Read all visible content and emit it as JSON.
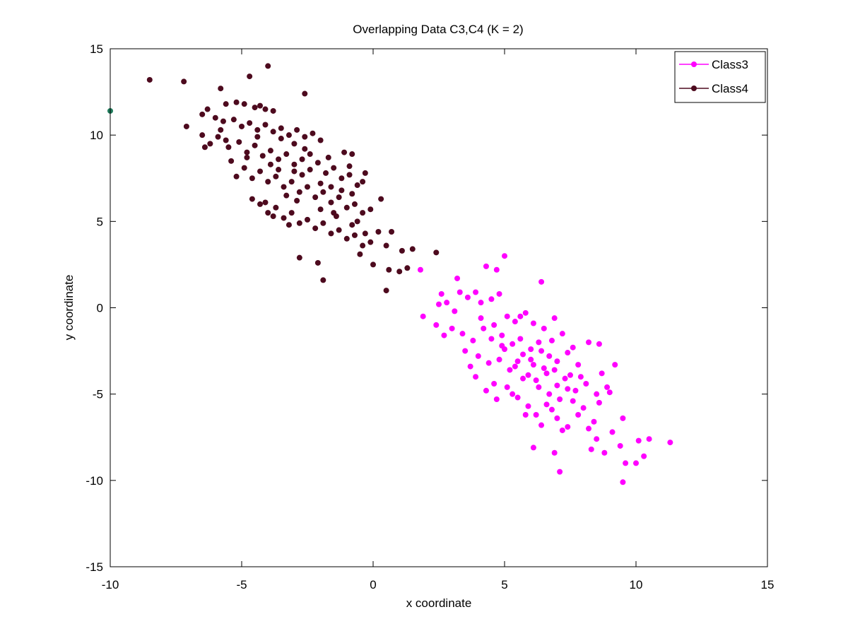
{
  "chart_data": {
    "type": "scatter",
    "title": "Overlapping Data C3,C4 (K = 2)",
    "xlabel": "x coordinate",
    "ylabel": "y coordinate",
    "xlim": [
      -10,
      15
    ],
    "ylim": [
      -15,
      15
    ],
    "xticks": [
      "-10",
      "-5",
      "0",
      "5",
      "10",
      "15"
    ],
    "yticks": [
      "-15",
      "-10",
      "-5",
      "0",
      "5",
      "10",
      "15"
    ],
    "legend_position": "top-right",
    "grid": false,
    "series": [
      {
        "name": "Class3",
        "color": "#ff00ff",
        "points": [
          [
            5.0,
            3.0
          ],
          [
            4.3,
            2.4
          ],
          [
            4.7,
            2.2
          ],
          [
            6.4,
            1.5
          ],
          [
            3.2,
            1.7
          ],
          [
            1.8,
            2.2
          ],
          [
            2.6,
            0.8
          ],
          [
            3.9,
            0.9
          ],
          [
            4.8,
            0.8
          ],
          [
            1.9,
            -0.5
          ],
          [
            2.5,
            0.2
          ],
          [
            2.8,
            0.3
          ],
          [
            3.1,
            -0.2
          ],
          [
            3.6,
            0.6
          ],
          [
            3.3,
            0.9
          ],
          [
            4.1,
            0.3
          ],
          [
            4.5,
            0.5
          ],
          [
            5.1,
            -0.5
          ],
          [
            5.4,
            -0.8
          ],
          [
            5.8,
            -0.3
          ],
          [
            6.1,
            -0.9
          ],
          [
            6.5,
            -1.2
          ],
          [
            6.9,
            -0.6
          ],
          [
            7.2,
            -1.5
          ],
          [
            4.2,
            -1.2
          ],
          [
            4.6,
            -1.0
          ],
          [
            4.9,
            -1.6
          ],
          [
            5.3,
            -2.1
          ],
          [
            5.6,
            -1.8
          ],
          [
            6.0,
            -2.4
          ],
          [
            6.3,
            -2.0
          ],
          [
            6.7,
            -2.8
          ],
          [
            7.0,
            -3.1
          ],
          [
            7.4,
            -2.6
          ],
          [
            7.8,
            -3.3
          ],
          [
            8.2,
            -2.0
          ],
          [
            8.6,
            -2.1
          ],
          [
            3.5,
            -2.5
          ],
          [
            3.8,
            -1.9
          ],
          [
            4.0,
            -2.8
          ],
          [
            4.4,
            -3.2
          ],
          [
            4.8,
            -3.0
          ],
          [
            5.2,
            -3.6
          ],
          [
            5.5,
            -3.1
          ],
          [
            5.9,
            -3.9
          ],
          [
            6.2,
            -4.2
          ],
          [
            6.6,
            -3.8
          ],
          [
            7.0,
            -4.5
          ],
          [
            7.3,
            -4.1
          ],
          [
            7.7,
            -4.8
          ],
          [
            8.1,
            -4.4
          ],
          [
            8.5,
            -5.0
          ],
          [
            8.9,
            -4.6
          ],
          [
            9.2,
            -3.3
          ],
          [
            2.4,
            -1.0
          ],
          [
            2.7,
            -1.6
          ],
          [
            3.0,
            -1.2
          ],
          [
            3.4,
            -1.5
          ],
          [
            3.7,
            -3.4
          ],
          [
            4.3,
            -4.8
          ],
          [
            4.7,
            -5.3
          ],
          [
            5.1,
            -4.6
          ],
          [
            5.5,
            -5.2
          ],
          [
            5.9,
            -5.7
          ],
          [
            6.2,
            -6.2
          ],
          [
            6.6,
            -5.6
          ],
          [
            7.0,
            -6.4
          ],
          [
            7.4,
            -6.9
          ],
          [
            7.8,
            -6.2
          ],
          [
            8.2,
            -7.0
          ],
          [
            8.5,
            -7.6
          ],
          [
            8.8,
            -8.4
          ],
          [
            9.1,
            -7.2
          ],
          [
            9.5,
            -6.4
          ],
          [
            9.4,
            -8.0
          ],
          [
            9.6,
            -9.0
          ],
          [
            10.0,
            -9.0
          ],
          [
            10.1,
            -7.7
          ],
          [
            10.5,
            -7.6
          ],
          [
            10.3,
            -8.6
          ],
          [
            11.3,
            -7.8
          ],
          [
            9.5,
            -10.1
          ],
          [
            7.1,
            -9.5
          ],
          [
            6.9,
            -8.4
          ],
          [
            6.1,
            -8.1
          ],
          [
            8.3,
            -8.2
          ],
          [
            5.8,
            -6.2
          ],
          [
            5.3,
            -5.0
          ],
          [
            4.6,
            -4.4
          ],
          [
            6.8,
            -5.9
          ],
          [
            7.6,
            -5.4
          ],
          [
            8.0,
            -5.8
          ],
          [
            8.4,
            -6.6
          ],
          [
            7.2,
            -7.1
          ],
          [
            6.4,
            -6.8
          ],
          [
            5.7,
            -4.1
          ],
          [
            6.9,
            -3.6
          ],
          [
            7.5,
            -3.9
          ],
          [
            8.7,
            -3.8
          ],
          [
            9.0,
            -4.9
          ],
          [
            8.6,
            -5.5
          ],
          [
            6.0,
            -3.0
          ],
          [
            6.4,
            -2.5
          ],
          [
            5.0,
            -2.4
          ],
          [
            4.5,
            -1.8
          ],
          [
            4.1,
            -0.6
          ],
          [
            5.6,
            -0.5
          ],
          [
            6.8,
            -1.9
          ],
          [
            7.6,
            -2.3
          ],
          [
            3.9,
            -4.0
          ],
          [
            6.3,
            -4.6
          ],
          [
            6.7,
            -5.0
          ],
          [
            7.1,
            -5.3
          ],
          [
            5.4,
            -3.4
          ],
          [
            4.9,
            -2.2
          ],
          [
            5.7,
            -2.7
          ],
          [
            6.1,
            -3.3
          ],
          [
            6.5,
            -3.5
          ],
          [
            7.9,
            -4.0
          ],
          [
            7.4,
            -4.7
          ]
        ]
      },
      {
        "name": "Class4",
        "color": "#4d0a1e",
        "points": [
          [
            -4.0,
            14.0
          ],
          [
            -4.7,
            13.4
          ],
          [
            -8.5,
            13.2
          ],
          [
            -7.2,
            13.1
          ],
          [
            -5.8,
            12.7
          ],
          [
            -2.6,
            12.4
          ],
          [
            -5.6,
            11.8
          ],
          [
            -5.2,
            11.9
          ],
          [
            -4.9,
            11.8
          ],
          [
            -4.5,
            11.6
          ],
          [
            -4.3,
            11.7
          ],
          [
            -4.1,
            11.5
          ],
          [
            -3.8,
            11.4
          ],
          [
            -6.3,
            11.5
          ],
          [
            -6.5,
            11.2
          ],
          [
            -6.0,
            11.0
          ],
          [
            -5.7,
            10.8
          ],
          [
            -5.3,
            10.9
          ],
          [
            -5.0,
            10.5
          ],
          [
            -4.7,
            10.7
          ],
          [
            -4.4,
            10.3
          ],
          [
            -4.1,
            10.6
          ],
          [
            -3.8,
            10.2
          ],
          [
            -3.5,
            10.4
          ],
          [
            -3.2,
            10.0
          ],
          [
            -2.9,
            10.3
          ],
          [
            -2.6,
            9.9
          ],
          [
            -2.3,
            10.1
          ],
          [
            -2.0,
            9.7
          ],
          [
            -7.1,
            10.5
          ],
          [
            -6.5,
            10.0
          ],
          [
            -6.2,
            9.5
          ],
          [
            -5.9,
            9.9
          ],
          [
            -5.5,
            9.3
          ],
          [
            -5.1,
            9.6
          ],
          [
            -4.8,
            9.0
          ],
          [
            -4.5,
            9.4
          ],
          [
            -4.2,
            8.8
          ],
          [
            -3.9,
            9.1
          ],
          [
            -3.6,
            8.6
          ],
          [
            -3.3,
            8.9
          ],
          [
            -3.0,
            8.3
          ],
          [
            -2.7,
            8.6
          ],
          [
            -2.4,
            8.0
          ],
          [
            -2.1,
            8.4
          ],
          [
            -1.8,
            7.8
          ],
          [
            -1.5,
            8.1
          ],
          [
            -1.2,
            7.5
          ],
          [
            -0.9,
            7.7
          ],
          [
            -0.6,
            7.1
          ],
          [
            -1.1,
            9.0
          ],
          [
            -0.8,
            8.9
          ],
          [
            -0.3,
            7.8
          ],
          [
            -0.4,
            7.3
          ],
          [
            -6.4,
            9.3
          ],
          [
            -5.4,
            8.5
          ],
          [
            -4.9,
            8.1
          ],
          [
            -4.6,
            7.5
          ],
          [
            -4.3,
            7.9
          ],
          [
            -4.0,
            7.3
          ],
          [
            -3.7,
            7.6
          ],
          [
            -3.4,
            7.0
          ],
          [
            -3.1,
            7.3
          ],
          [
            -2.8,
            6.7
          ],
          [
            -2.5,
            7.0
          ],
          [
            -2.2,
            6.4
          ],
          [
            -1.9,
            6.7
          ],
          [
            -1.6,
            6.1
          ],
          [
            -1.3,
            6.4
          ],
          [
            -1.0,
            5.8
          ],
          [
            -0.7,
            6.0
          ],
          [
            -0.4,
            5.5
          ],
          [
            -0.1,
            5.7
          ],
          [
            0.3,
            6.3
          ],
          [
            -5.2,
            7.6
          ],
          [
            -4.6,
            6.3
          ],
          [
            -4.3,
            6.0
          ],
          [
            -4.0,
            5.5
          ],
          [
            -3.7,
            5.8
          ],
          [
            -3.4,
            5.2
          ],
          [
            -3.1,
            5.5
          ],
          [
            -2.8,
            4.9
          ],
          [
            -2.5,
            5.1
          ],
          [
            -2.2,
            4.6
          ],
          [
            -1.9,
            4.9
          ],
          [
            -1.6,
            4.3
          ],
          [
            -1.3,
            4.5
          ],
          [
            -1.0,
            4.0
          ],
          [
            -0.7,
            4.2
          ],
          [
            -0.4,
            3.6
          ],
          [
            -0.1,
            3.8
          ],
          [
            0.2,
            4.4
          ],
          [
            0.7,
            4.4
          ],
          [
            0.5,
            3.6
          ],
          [
            1.1,
            3.3
          ],
          [
            1.5,
            3.4
          ],
          [
            2.4,
            3.2
          ],
          [
            1.3,
            2.3
          ],
          [
            1.0,
            2.1
          ],
          [
            0.6,
            2.2
          ],
          [
            0.5,
            1.0
          ],
          [
            0.0,
            2.5
          ],
          [
            -0.5,
            3.1
          ],
          [
            -1.9,
            1.6
          ],
          [
            -2.1,
            2.6
          ],
          [
            -2.8,
            2.9
          ],
          [
            -3.2,
            4.8
          ],
          [
            -3.8,
            5.3
          ],
          [
            -4.1,
            6.1
          ],
          [
            -2.0,
            5.7
          ],
          [
            -1.4,
            5.3
          ],
          [
            -0.8,
            4.8
          ],
          [
            -0.3,
            4.3
          ],
          [
            -2.6,
            9.2
          ],
          [
            -3.0,
            9.5
          ],
          [
            -3.5,
            9.8
          ],
          [
            -4.4,
            9.9
          ],
          [
            -5.8,
            10.3
          ],
          [
            -3.9,
            8.3
          ],
          [
            -3.0,
            7.9
          ],
          [
            -2.0,
            7.2
          ],
          [
            -1.6,
            7.0
          ],
          [
            -1.2,
            6.8
          ],
          [
            -0.8,
            6.6
          ],
          [
            -2.7,
            7.7
          ],
          [
            -3.6,
            8.0
          ],
          [
            -4.8,
            8.7
          ],
          [
            -5.6,
            9.7
          ],
          [
            -2.4,
            8.9
          ],
          [
            -1.7,
            8.7
          ],
          [
            -0.9,
            8.2
          ],
          [
            -2.9,
            6.2
          ],
          [
            -1.5,
            5.5
          ],
          [
            -0.6,
            5.0
          ],
          [
            -3.3,
            6.5
          ]
        ]
      },
      {
        "name": "",
        "color": "#1e7a5a",
        "points": [
          [
            -10.0,
            11.4
          ]
        ]
      }
    ]
  }
}
